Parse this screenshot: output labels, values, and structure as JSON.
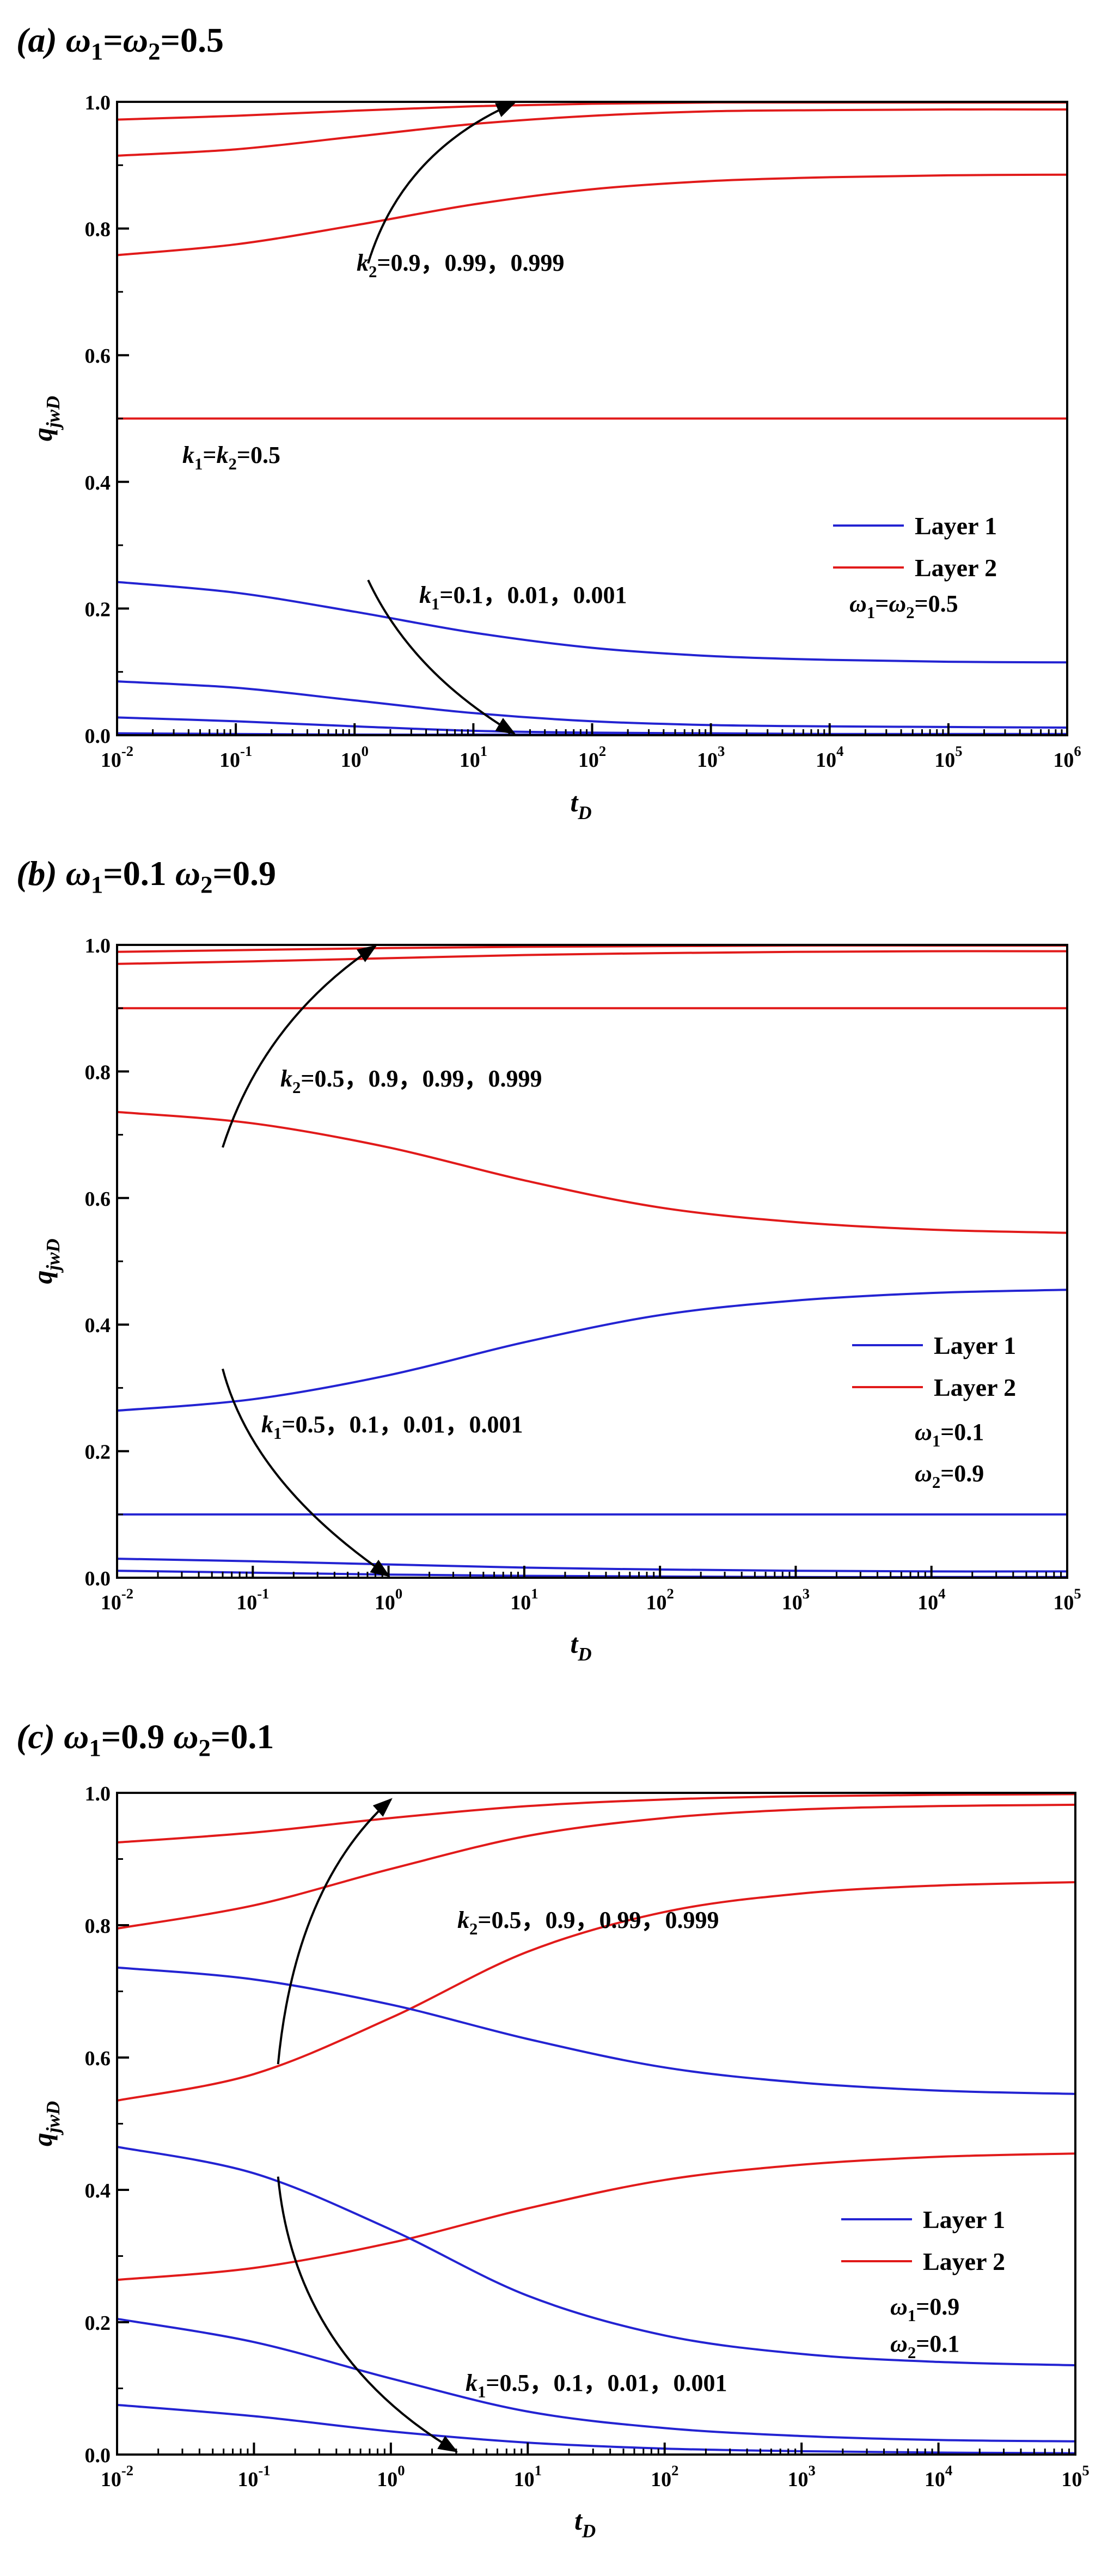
{
  "figure": {
    "panel_titles": [
      {
        "label": "(a)",
        "w1": "ω",
        "w1_sub": "1",
        "eq1": "=",
        "w2": "ω",
        "w2_sub": "2",
        "eq2": "=0.5"
      },
      {
        "label": "(b)",
        "w1": "ω",
        "w1_sub": "1",
        "eq1": "=0.1 ",
        "w2": "ω",
        "w2_sub": "2",
        "eq2": "=0.9"
      },
      {
        "label": "(c)",
        "w1": "ω",
        "w1_sub": "1",
        "eq1": "=0.9 ",
        "w2": "ω",
        "w2_sub": "2",
        "eq2": "=0.1"
      }
    ]
  },
  "colors": {
    "layer1": "#2323d2",
    "layer2": "#e11a1a",
    "arrow": "#000000",
    "axis": "#000000"
  },
  "chart_data": [
    {
      "type": "line",
      "title": "(a) ω1=ω2=0.5",
      "xlabel": "t_D",
      "ylabel": "q_jwD",
      "xscale": "log",
      "xlim": [
        0.01,
        1000000
      ],
      "ylim": [
        0,
        1.0
      ],
      "x_ticks": [
        {
          "base": "10",
          "exp": "-2"
        },
        {
          "base": "10",
          "exp": "-1"
        },
        {
          "base": "10",
          "exp": "0"
        },
        {
          "base": "10",
          "exp": "1"
        },
        {
          "base": "10",
          "exp": "2"
        },
        {
          "base": "10",
          "exp": "3"
        },
        {
          "base": "10",
          "exp": "4"
        },
        {
          "base": "10",
          "exp": "5"
        },
        {
          "base": "10",
          "exp": "6"
        }
      ],
      "y_ticks": [
        "0.0",
        "0.2",
        "0.4",
        "0.6",
        "0.8",
        "1.0"
      ],
      "legend": {
        "position": "right-middle",
        "entries": [
          "Layer 1",
          "Layer 2"
        ]
      },
      "legend_note": [
        {
          "sym": "ω",
          "sub": "1",
          "eq": "=",
          "sym2": "ω",
          "sub2": "2",
          "eq2": "=0.5"
        }
      ],
      "annotations": [
        {
          "sym": "k",
          "sub": "2",
          "text": "=0.9，0.99，0.999"
        },
        {
          "sym": "k",
          "sub": "1",
          "eq": "=",
          "sym2": "k",
          "sub2": "2",
          "text": "=0.5"
        },
        {
          "sym": "k",
          "sub": "1",
          "text": "=0.1，0.01，0.001"
        }
      ],
      "series": [
        {
          "layer": 2,
          "x": [
            0.01,
            0.1,
            1,
            10,
            100,
            1000,
            10000,
            100000,
            1000000
          ],
          "y": [
            0.972,
            0.978,
            0.986,
            0.993,
            0.997,
            0.999,
            0.999,
            0.999,
            0.999
          ]
        },
        {
          "layer": 2,
          "x": [
            0.01,
            0.1,
            1,
            10,
            100,
            1000,
            10000,
            100000,
            1000000
          ],
          "y": [
            0.915,
            0.925,
            0.945,
            0.965,
            0.978,
            0.985,
            0.987,
            0.988,
            0.988
          ]
        },
        {
          "layer": 2,
          "x": [
            0.01,
            0.1,
            1,
            10,
            100,
            1000,
            10000,
            100000,
            1000000
          ],
          "y": [
            0.758,
            0.775,
            0.805,
            0.838,
            0.862,
            0.875,
            0.881,
            0.884,
            0.885
          ]
        },
        {
          "layer": 2,
          "x": [
            0.01,
            1000000
          ],
          "y": [
            0.5,
            0.5
          ]
        },
        {
          "layer": 1,
          "x": [
            0.01,
            0.1,
            1,
            10,
            100,
            1000,
            10000,
            100000,
            1000000
          ],
          "y": [
            0.242,
            0.225,
            0.195,
            0.162,
            0.138,
            0.125,
            0.119,
            0.116,
            0.115
          ]
        },
        {
          "layer": 1,
          "x": [
            0.01,
            0.1,
            1,
            10,
            100,
            1000,
            10000,
            100000,
            1000000
          ],
          "y": [
            0.085,
            0.075,
            0.055,
            0.035,
            0.022,
            0.016,
            0.014,
            0.013,
            0.012
          ]
        },
        {
          "layer": 1,
          "x": [
            0.01,
            0.1,
            1,
            10,
            100,
            1000,
            10000,
            100000,
            1000000
          ],
          "y": [
            0.028,
            0.022,
            0.014,
            0.007,
            0.004,
            0.003,
            0.002,
            0.002,
            0.002
          ]
        },
        {
          "layer": 1,
          "x": [
            0.01,
            0.1,
            1,
            10,
            100,
            1000,
            10000,
            100000,
            1000000
          ],
          "y": [
            0.003,
            0.002,
            0.001,
            0.001,
            0.001,
            0.001,
            0.001,
            0.001,
            0.001
          ]
        }
      ],
      "arrows": [
        {
          "from": [
            1.3,
            0.745
          ],
          "ctrl": [
            2.5,
            0.92
          ],
          "to": [
            22,
            0.998
          ]
        },
        {
          "from": [
            1.3,
            0.245
          ],
          "ctrl": [
            3,
            0.1
          ],
          "to": [
            22,
            0.003
          ]
        }
      ]
    },
    {
      "type": "line",
      "title": "(b) ω1=0.1 ω2=0.9",
      "xlabel": "t_D",
      "ylabel": "q_jwD",
      "xscale": "log",
      "xlim": [
        0.01,
        100000
      ],
      "ylim": [
        0,
        1.0
      ],
      "x_ticks": [
        {
          "base": "10",
          "exp": "-2"
        },
        {
          "base": "10",
          "exp": "-1"
        },
        {
          "base": "10",
          "exp": "0"
        },
        {
          "base": "10",
          "exp": "1"
        },
        {
          "base": "10",
          "exp": "2"
        },
        {
          "base": "10",
          "exp": "3"
        },
        {
          "base": "10",
          "exp": "4"
        },
        {
          "base": "10",
          "exp": "5"
        }
      ],
      "y_ticks": [
        "0.0",
        "0.2",
        "0.4",
        "0.6",
        "0.8",
        "1.0"
      ],
      "legend": {
        "position": "right-middle",
        "entries": [
          "Layer 1",
          "Layer 2"
        ]
      },
      "legend_note": [
        {
          "sym": "ω",
          "sub": "1",
          "eq": "=0.1"
        },
        {
          "sym": "ω",
          "sub": "2",
          "eq": "=0.9"
        }
      ],
      "annotations": [
        {
          "sym": "k",
          "sub": "2",
          "text": "=0.5，0.9，0.99，0.999"
        },
        {
          "sym": "k",
          "sub": "1",
          "text": "=0.5，0.1，0.01，0.001"
        }
      ],
      "series": [
        {
          "layer": 2,
          "x": [
            0.01,
            0.1,
            1,
            10,
            100,
            1000,
            10000,
            100000
          ],
          "y": [
            0.989,
            0.992,
            0.995,
            0.997,
            0.998,
            0.999,
            0.999,
            0.999
          ]
        },
        {
          "layer": 2,
          "x": [
            0.01,
            0.1,
            1,
            10,
            100,
            1000,
            10000,
            100000
          ],
          "y": [
            0.97,
            0.974,
            0.979,
            0.984,
            0.987,
            0.989,
            0.99,
            0.99
          ]
        },
        {
          "layer": 2,
          "x": [
            0.01,
            100000
          ],
          "y": [
            0.9,
            0.9
          ]
        },
        {
          "layer": 2,
          "x": [
            0.01,
            0.1,
            1,
            10,
            100,
            1000,
            10000,
            100000
          ],
          "y": [
            0.736,
            0.718,
            0.68,
            0.628,
            0.585,
            0.562,
            0.55,
            0.545
          ]
        },
        {
          "layer": 1,
          "x": [
            0.01,
            0.1,
            1,
            10,
            100,
            1000,
            10000,
            100000
          ],
          "y": [
            0.264,
            0.282,
            0.32,
            0.372,
            0.415,
            0.438,
            0.45,
            0.455
          ]
        },
        {
          "layer": 1,
          "x": [
            0.01,
            100000
          ],
          "y": [
            0.1,
            0.1
          ]
        },
        {
          "layer": 1,
          "x": [
            0.01,
            0.1,
            1,
            10,
            100,
            1000,
            10000,
            100000
          ],
          "y": [
            0.03,
            0.026,
            0.021,
            0.016,
            0.013,
            0.011,
            0.01,
            0.01
          ]
        },
        {
          "layer": 1,
          "x": [
            0.01,
            0.1,
            1,
            10,
            100,
            1000,
            10000,
            100000
          ],
          "y": [
            0.011,
            0.008,
            0.005,
            0.003,
            0.002,
            0.001,
            0.001,
            0.001
          ]
        }
      ],
      "arrows": [
        {
          "from": [
            0.06,
            0.68
          ],
          "ctrl": [
            0.12,
            0.88
          ],
          "to": [
            0.8,
            0.998
          ]
        },
        {
          "from": [
            0.06,
            0.33
          ],
          "ctrl": [
            0.1,
            0.15
          ],
          "to": [
            1.0,
            0.003
          ]
        }
      ]
    },
    {
      "type": "line",
      "title": "(c) ω1=0.9 ω2=0.1",
      "xlabel": "t_D",
      "ylabel": "q_jwD",
      "xscale": "log",
      "xlim": [
        0.01,
        100000
      ],
      "ylim": [
        0,
        1.0
      ],
      "x_ticks": [
        {
          "base": "10",
          "exp": "-2"
        },
        {
          "base": "10",
          "exp": "-1"
        },
        {
          "base": "10",
          "exp": "0"
        },
        {
          "base": "10",
          "exp": "1"
        },
        {
          "base": "10",
          "exp": "2"
        },
        {
          "base": "10",
          "exp": "3"
        },
        {
          "base": "10",
          "exp": "4"
        },
        {
          "base": "10",
          "exp": "5"
        }
      ],
      "y_ticks": [
        "0.0",
        "0.2",
        "0.4",
        "0.6",
        "0.8",
        "1.0"
      ],
      "legend": {
        "position": "right-middle",
        "entries": [
          "Layer 1",
          "Layer 2"
        ]
      },
      "legend_note": [
        {
          "sym": "ω",
          "sub": "1",
          "eq": "=0.9"
        },
        {
          "sym": "ω",
          "sub": "2",
          "eq": "=0.1"
        }
      ],
      "annotations": [
        {
          "sym": "k",
          "sub": "2",
          "text": "=0.5，0.9，0.99，0.999"
        },
        {
          "sym": "k",
          "sub": "1",
          "text": "=0.5，0.1，0.01，0.001"
        }
      ],
      "series": [
        {
          "layer": 2,
          "x": [
            0.01,
            0.1,
            1,
            10,
            100,
            1000,
            10000,
            100000
          ],
          "y": [
            0.925,
            0.94,
            0.962,
            0.98,
            0.99,
            0.995,
            0.997,
            0.998
          ]
        },
        {
          "layer": 2,
          "x": [
            0.01,
            0.1,
            1,
            10,
            100,
            1000,
            10000,
            100000
          ],
          "y": [
            0.795,
            0.83,
            0.885,
            0.935,
            0.962,
            0.975,
            0.98,
            0.982
          ]
        },
        {
          "layer": 2,
          "x": [
            0.01,
            0.1,
            1,
            10,
            100,
            1000,
            10000,
            100000
          ],
          "y": [
            0.535,
            0.575,
            0.66,
            0.76,
            0.82,
            0.848,
            0.86,
            0.865
          ]
        },
        {
          "layer": 2,
          "x": [
            0.01,
            0.1,
            1,
            10,
            100,
            1000,
            10000,
            100000
          ],
          "y": [
            0.264,
            0.282,
            0.32,
            0.372,
            0.415,
            0.438,
            0.45,
            0.455
          ]
        },
        {
          "layer": 1,
          "x": [
            0.01,
            0.1,
            1,
            10,
            100,
            1000,
            10000,
            100000
          ],
          "y": [
            0.736,
            0.718,
            0.68,
            0.628,
            0.585,
            0.562,
            0.55,
            0.545
          ]
        },
        {
          "layer": 1,
          "x": [
            0.01,
            0.1,
            1,
            10,
            100,
            1000,
            10000,
            100000
          ],
          "y": [
            0.465,
            0.425,
            0.34,
            0.24,
            0.18,
            0.152,
            0.14,
            0.135
          ]
        },
        {
          "layer": 1,
          "x": [
            0.01,
            0.1,
            1,
            10,
            100,
            1000,
            10000,
            100000
          ],
          "y": [
            0.205,
            0.17,
            0.115,
            0.065,
            0.04,
            0.028,
            0.022,
            0.02
          ]
        },
        {
          "layer": 1,
          "x": [
            0.01,
            0.1,
            1,
            10,
            100,
            1000,
            10000,
            100000
          ],
          "y": [
            0.075,
            0.058,
            0.035,
            0.018,
            0.009,
            0.005,
            0.003,
            0.002
          ]
        }
      ],
      "arrows": [
        {
          "from": [
            0.15,
            0.59
          ],
          "ctrl": [
            0.2,
            0.86
          ],
          "to": [
            1.0,
            0.99
          ]
        },
        {
          "from": [
            0.15,
            0.42
          ],
          "ctrl": [
            0.2,
            0.15
          ],
          "to": [
            3.0,
            0.005
          ]
        }
      ]
    }
  ]
}
